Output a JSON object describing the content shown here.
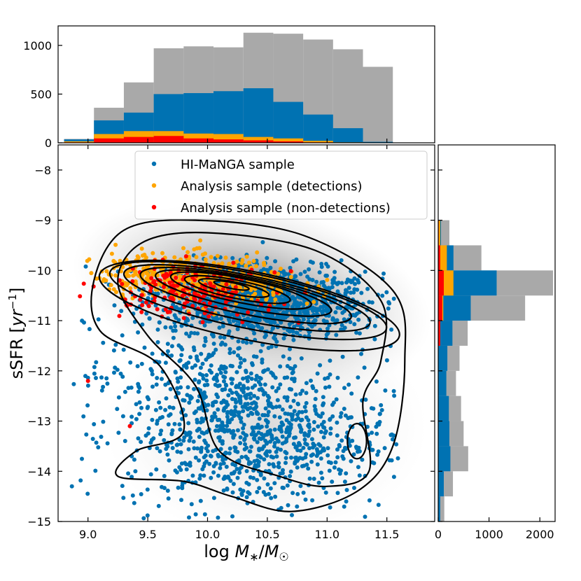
{
  "chart_data": {
    "type": "scatter",
    "xlabel": "log M*/M☉",
    "ylabel": "sSFR [yr⁻¹]",
    "xlim": [
      8.75,
      11.9
    ],
    "ylim": [
      -15,
      -7.5
    ],
    "xticks": [
      "9.0",
      "9.5",
      "10.0",
      "10.5",
      "11.0",
      "11.5"
    ],
    "yticks": [
      "−8",
      "−9",
      "−10",
      "−11",
      "−12",
      "−13",
      "−14",
      "−15"
    ],
    "colors": {
      "himanga": "#0072b2",
      "detections": "#ffa500",
      "nondetections": "#ff0000",
      "total": "#a9a9a9",
      "contour": "#000000"
    },
    "legend": {
      "position": "top-center",
      "entries": [
        "HI-MaNGA sample",
        "Analysis sample (detections)",
        "Analysis sample (non-detections)"
      ]
    },
    "top_hist": {
      "bin_edges": [
        8.8,
        9.05,
        9.3,
        9.55,
        9.8,
        10.05,
        10.3,
        10.55,
        10.8,
        11.05,
        11.3,
        11.55
      ],
      "ylim": [
        0,
        1200
      ],
      "yticks": [
        "0",
        "500",
        "1000"
      ],
      "series": [
        {
          "name": "total",
          "values": [
            40,
            360,
            620,
            970,
            990,
            980,
            1130,
            1120,
            1060,
            960,
            780
          ]
        },
        {
          "name": "HI-MaNGA sample",
          "values": [
            35,
            230,
            310,
            500,
            510,
            530,
            560,
            420,
            290,
            150,
            10
          ]
        },
        {
          "name": "Analysis sample (detections)",
          "values": [
            15,
            90,
            120,
            120,
            95,
            90,
            60,
            45,
            20,
            5,
            0
          ]
        },
        {
          "name": "Analysis sample (non-detections)",
          "values": [
            5,
            45,
            60,
            70,
            45,
            35,
            25,
            15,
            5,
            0,
            0
          ]
        }
      ]
    },
    "right_hist": {
      "bin_edges": [
        -9,
        -9.5,
        -10,
        -10.5,
        -11,
        -11.5,
        -12,
        -12.5,
        -13,
        -13.5,
        -14,
        -14.5,
        -15
      ],
      "xlim": [
        0,
        2300
      ],
      "xticks": [
        "0",
        "1000",
        "2000"
      ],
      "series": [
        {
          "name": "total",
          "values": [
            220,
            850,
            2260,
            1710,
            580,
            420,
            350,
            450,
            500,
            590,
            290,
            120
          ]
        },
        {
          "name": "HI-MaNGA sample",
          "values": [
            55,
            300,
            1150,
            640,
            280,
            180,
            160,
            210,
            220,
            240,
            110,
            40
          ]
        },
        {
          "name": "Analysis sample (detections)",
          "values": [
            40,
            170,
            300,
            100,
            40,
            5,
            0,
            0,
            0,
            0,
            0,
            0
          ]
        },
        {
          "name": "Analysis sample (non-detections)",
          "values": [
            10,
            40,
            110,
            80,
            40,
            5,
            0,
            0,
            0,
            0,
            0,
            0
          ]
        }
      ]
    },
    "blobs": [
      {
        "name": "HI-MaNGA sample",
        "n": 1250,
        "cx": 10.45,
        "cy": -10.6,
        "sx": 0.45,
        "sy": 0.35,
        "rot": -0.18
      },
      {
        "name": "HI-MaNGA sample",
        "n": 900,
        "cx": 10.4,
        "cy": -13.3,
        "sx": 0.55,
        "sy": 0.75,
        "rot": 0.0
      },
      {
        "name": "HI-MaNGA sample",
        "n": 220,
        "cx": 9.9,
        "cy": -12.2,
        "sx": 0.45,
        "sy": 0.55,
        "rot": 0.0
      },
      {
        "name": "Analysis sample (detections)",
        "n": 520,
        "cx": 9.95,
        "cy": -10.15,
        "sx": 0.42,
        "sy": 0.22,
        "rot": -0.22
      },
      {
        "name": "Analysis sample (non-detections)",
        "n": 190,
        "cx": 9.85,
        "cy": -10.4,
        "sx": 0.32,
        "sy": 0.26,
        "rot": -0.2
      }
    ],
    "outliers": [
      {
        "name": "Analysis sample (non-detections)",
        "x": 9.0,
        "y": -12.2
      },
      {
        "name": "Analysis sample (non-detections)",
        "x": 9.35,
        "y": -13.1
      },
      {
        "name": "Analysis sample (detections)",
        "x": 9.15,
        "y": -10.2
      },
      {
        "name": "HI-MaNGA sample",
        "x": 8.95,
        "y": -11.0
      },
      {
        "name": "HI-MaNGA sample",
        "x": 11.2,
        "y": -13.8
      }
    ],
    "contours": [
      {
        "cx": 10.2,
        "cy": -10.3,
        "rx": 0.15,
        "ry": 0.06,
        "rot": -0.2
      },
      {
        "cx": 10.22,
        "cy": -10.35,
        "rx": 0.3,
        "ry": 0.12,
        "rot": -0.2
      },
      {
        "cx": 10.25,
        "cy": -10.38,
        "rx": 0.45,
        "ry": 0.18,
        "rot": -0.2
      },
      {
        "cx": 10.28,
        "cy": -10.4,
        "rx": 0.6,
        "ry": 0.24,
        "rot": -0.2
      },
      {
        "cx": 10.3,
        "cy": -10.45,
        "rx": 0.75,
        "ry": 0.3,
        "rot": -0.2
      },
      {
        "cx": 10.32,
        "cy": -10.5,
        "rx": 0.9,
        "ry": 0.37,
        "rot": -0.2
      },
      {
        "cx": 10.33,
        "cy": -10.55,
        "rx": 1.05,
        "ry": 0.45,
        "rot": -0.2
      },
      {
        "cx": 10.34,
        "cy": -10.6,
        "rx": 1.18,
        "ry": 0.55,
        "rot": -0.2
      },
      {
        "cx": 10.35,
        "cy": -10.7,
        "rx": 1.28,
        "ry": 0.68,
        "rot": -0.2
      },
      {
        "cx": 11.25,
        "cy": -13.4,
        "rx": 0.08,
        "ry": 0.35,
        "rot": 0.0
      }
    ],
    "outer_contours": [
      [
        [
          9.05,
          -10.2
        ],
        [
          9.3,
          -9.2
        ],
        [
          9.9,
          -9.0
        ],
        [
          10.8,
          -9.3
        ],
        [
          11.55,
          -10.4
        ],
        [
          11.65,
          -11.8
        ],
        [
          11.55,
          -13.5
        ],
        [
          11.25,
          -14.4
        ],
        [
          10.7,
          -14.8
        ],
        [
          10.2,
          -14.5
        ],
        [
          9.8,
          -14.2
        ],
        [
          9.25,
          -14.1
        ],
        [
          9.4,
          -13.6
        ],
        [
          9.8,
          -13.2
        ],
        [
          9.6,
          -11.9
        ],
        [
          9.1,
          -11.2
        ]
      ],
      [
        [
          9.25,
          -10.25
        ],
        [
          9.45,
          -9.45
        ],
        [
          10.0,
          -9.25
        ],
        [
          10.9,
          -9.6
        ],
        [
          11.45,
          -10.6
        ],
        [
          11.45,
          -11.8
        ],
        [
          11.3,
          -12.6
        ],
        [
          11.35,
          -14.0
        ],
        [
          11.0,
          -14.3
        ],
        [
          10.6,
          -14.1
        ],
        [
          10.1,
          -13.6
        ],
        [
          9.9,
          -12.3
        ],
        [
          9.5,
          -11.3
        ]
      ]
    ]
  }
}
